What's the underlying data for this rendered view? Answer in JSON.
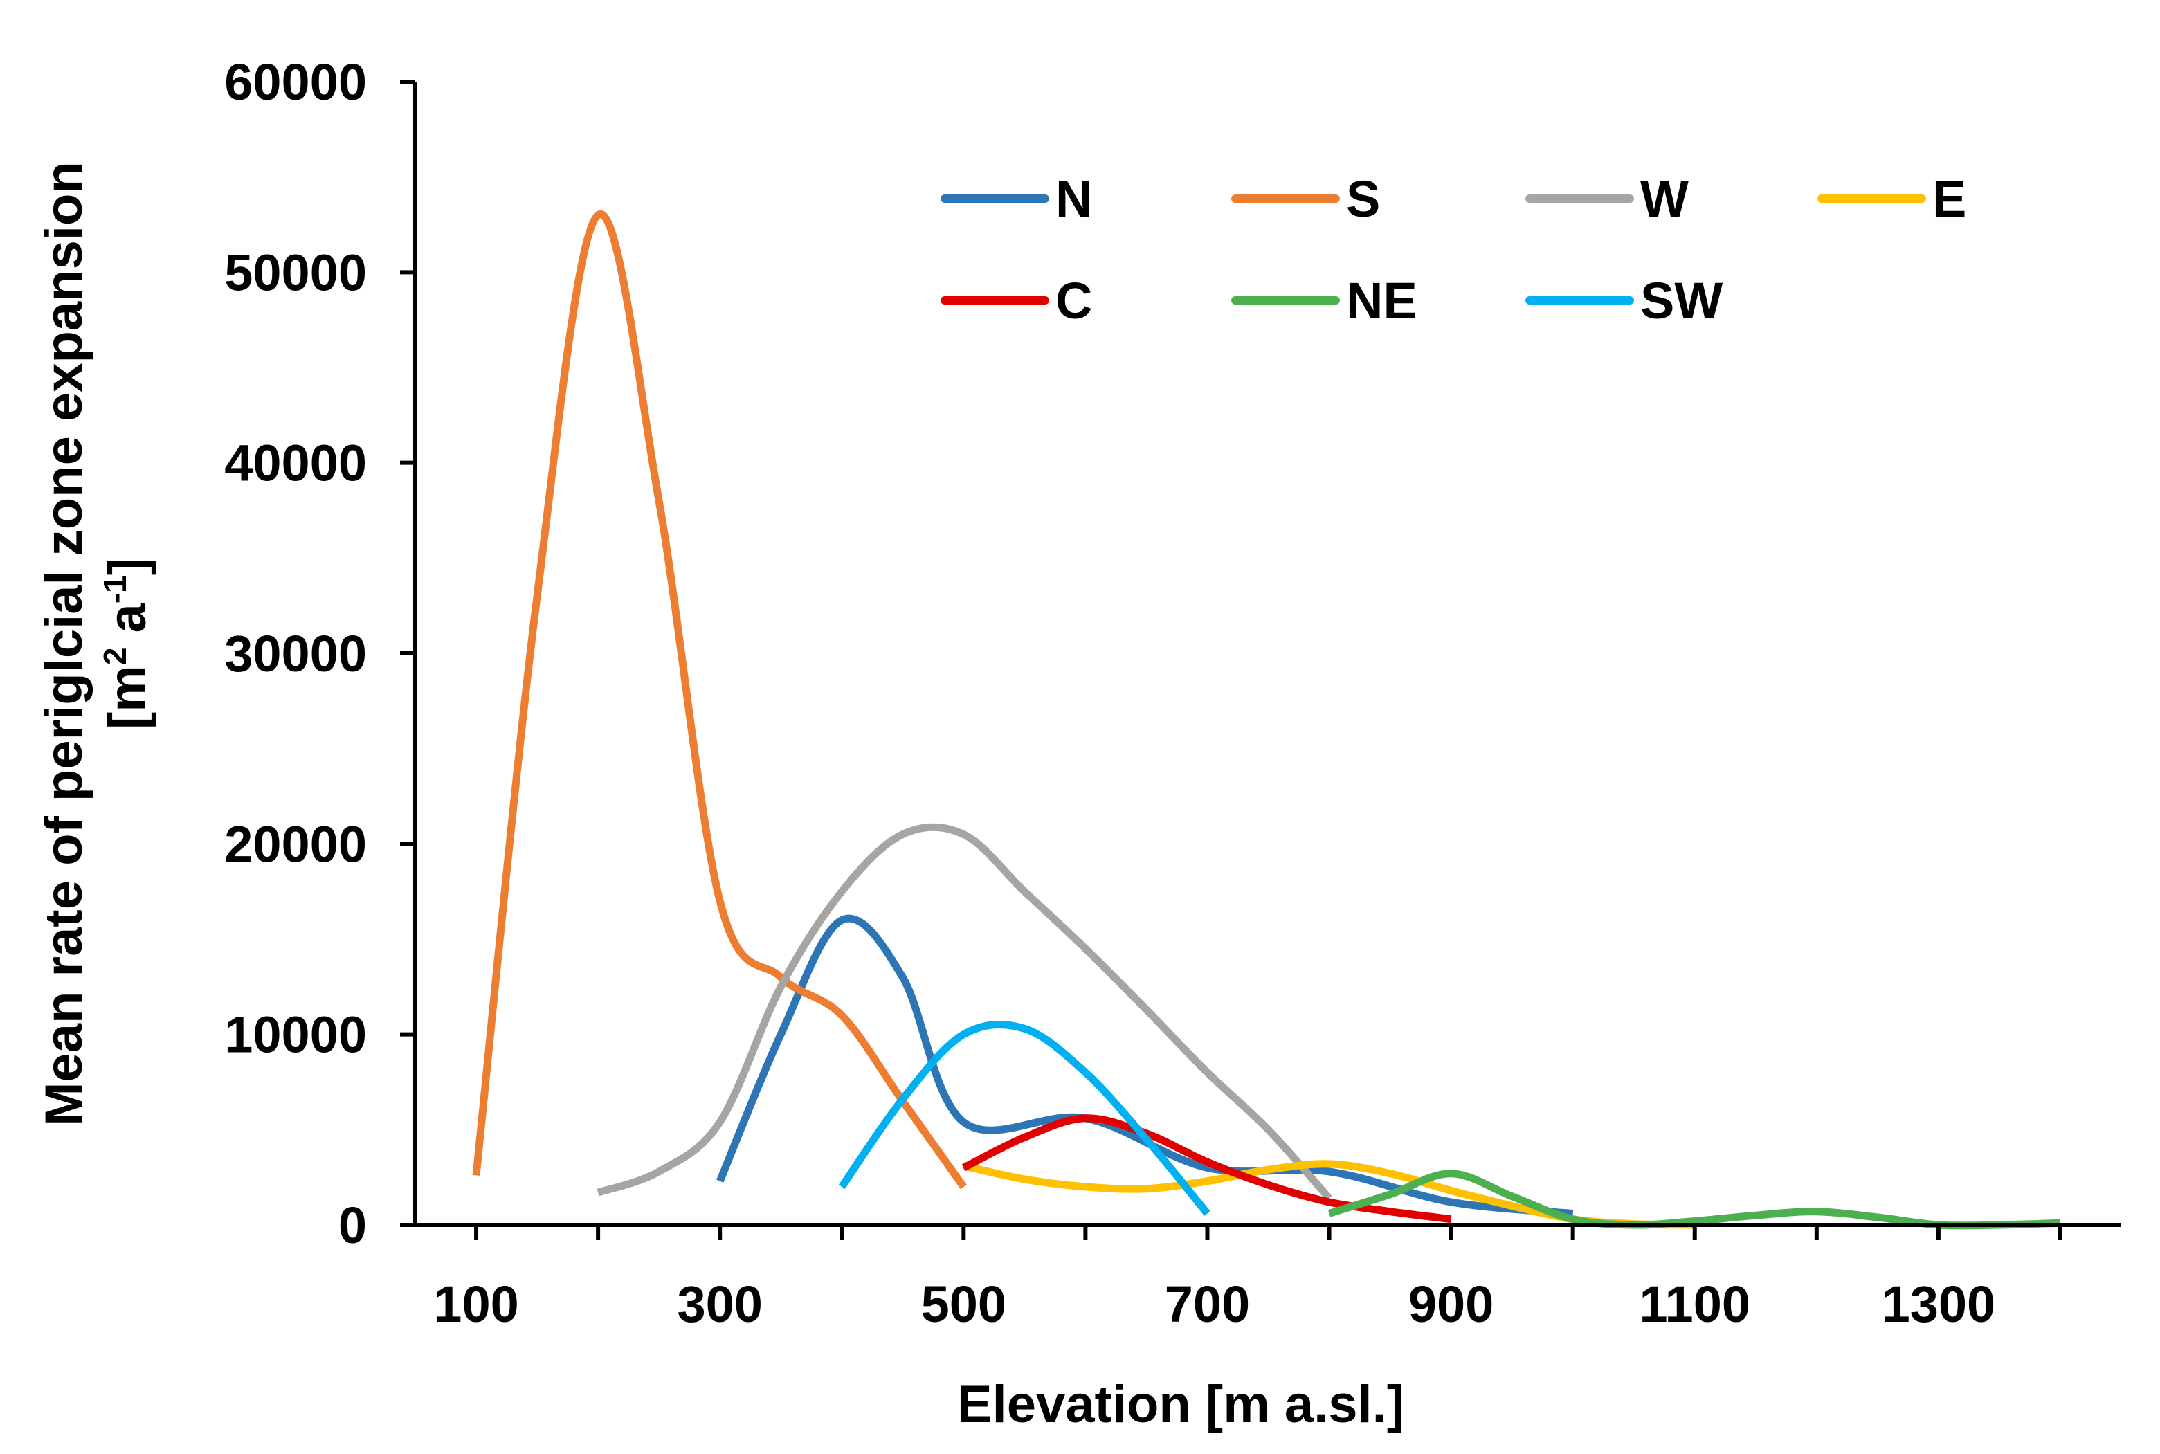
{
  "chart_data": {
    "type": "line",
    "title": "",
    "xlabel": "Elevation [m a.sl.]",
    "ylabel_line1": "Mean rate of periglcial zone expansion",
    "ylabel_line2_prefix": "[m",
    "ylabel_sup1": "2",
    "ylabel_mid": " a",
    "ylabel_sup2": "-1",
    "ylabel_suffix": "]",
    "xlim": [
      50,
      1450
    ],
    "ylim": [
      0,
      60000
    ],
    "x_ticks": [
      100,
      300,
      500,
      700,
      900,
      1100,
      1300
    ],
    "x_tick_labels": [
      "100",
      "300",
      "500",
      "700",
      "900",
      "1100",
      "1300"
    ],
    "y_ticks": [
      0,
      10000,
      20000,
      30000,
      40000,
      50000,
      60000
    ],
    "y_tick_labels": [
      "0",
      "10000",
      "20000",
      "30000",
      "40000",
      "50000",
      "60000"
    ],
    "legend_position": "top-right, inside plot, 4 columns",
    "grid": false,
    "series": [
      {
        "name": "N",
        "color": "#2E75B6",
        "x": [
          300,
          350,
          400,
          450,
          500,
          600,
          700,
          800,
          900,
          1000
        ],
        "y": [
          2300,
          10000,
          16000,
          13000,
          5400,
          5600,
          3000,
          2800,
          1200,
          600
        ]
      },
      {
        "name": "S",
        "color": "#ED7D31",
        "x": [
          100,
          150,
          200,
          250,
          300,
          350,
          400,
          450,
          500
        ],
        "y": [
          2600,
          33000,
          53000,
          38000,
          17000,
          13000,
          11000,
          6500,
          2000
        ]
      },
      {
        "name": "W",
        "color": "#A5A5A5",
        "x": [
          200,
          250,
          300,
          350,
          400,
          450,
          500,
          550,
          600,
          650,
          700,
          750,
          800
        ],
        "y": [
          1700,
          2800,
          5400,
          12500,
          17500,
          20500,
          20500,
          17500,
          14500,
          11300,
          8000,
          5000,
          1400
        ]
      },
      {
        "name": "E",
        "color": "#FFC000",
        "x": [
          500,
          550,
          600,
          650,
          700,
          750,
          800,
          850,
          900,
          950,
          1000,
          1050,
          1100
        ],
        "y": [
          3100,
          2400,
          2000,
          1900,
          2300,
          2900,
          3200,
          2700,
          1800,
          1000,
          300,
          50,
          0
        ]
      },
      {
        "name": "C",
        "color": "#E00000",
        "x": [
          500,
          550,
          600,
          650,
          700,
          750,
          800,
          850,
          900
        ],
        "y": [
          3000,
          4600,
          5600,
          4800,
          3300,
          2100,
          1200,
          700,
          300
        ]
      },
      {
        "name": "NE",
        "color": "#4CAF50",
        "x": [
          800,
          850,
          900,
          950,
          1000,
          1050,
          1100,
          1150,
          1200,
          1250,
          1300,
          1350,
          1400
        ],
        "y": [
          600,
          1600,
          2700,
          1500,
          300,
          0,
          200,
          500,
          700,
          400,
          0,
          0,
          100
        ]
      },
      {
        "name": "SW",
        "color": "#00B0F0",
        "x": [
          400,
          450,
          500,
          550,
          600,
          650,
          700
        ],
        "y": [
          2000,
          6600,
          10000,
          10300,
          8000,
          4500,
          600
        ]
      }
    ]
  }
}
